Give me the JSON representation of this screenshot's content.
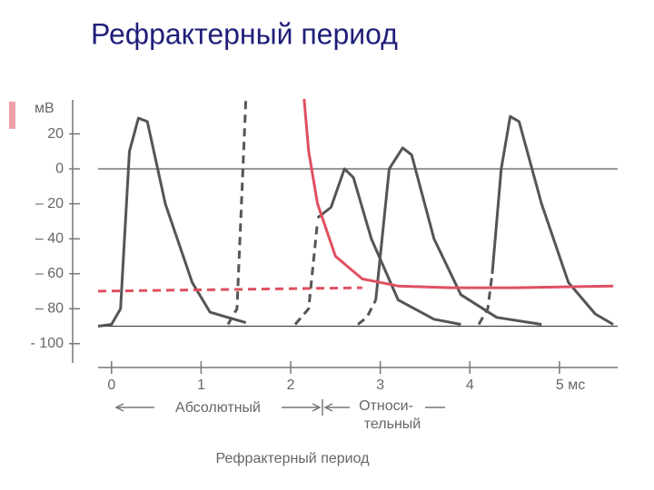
{
  "chart_data": {
    "type": "line",
    "title": "Рефрактерный период",
    "y_unit": "мВ",
    "xlim": [
      -0.15,
      5.65
    ],
    "ylim": [
      -110,
      40
    ],
    "xticks": [
      0,
      1,
      2,
      3,
      4,
      {
        "value": 5,
        "label": "5 мс"
      }
    ],
    "yticks": [
      20,
      0,
      {
        "value": -20,
        "label": "– 20"
      },
      {
        "value": -40,
        "label": "– 40"
      },
      {
        "value": -60,
        "label": "– 60"
      },
      {
        "value": -80,
        "label": "– 80"
      },
      {
        "value": -100,
        "label": "- 100"
      }
    ],
    "reference_lines": [
      0,
      -90
    ],
    "annotations": {
      "absolute": "Абсолютный",
      "relative_1": "Относи-",
      "relative_2": "тельный",
      "caption": "Рефрактерный период"
    },
    "series": [
      {
        "color": "#555555",
        "dashed": false,
        "x": [
          -0.15,
          0,
          0.1,
          0.2,
          0.3,
          0.4,
          0.6,
          0.9,
          1.1,
          1.5
        ],
        "values": [
          -90,
          -89,
          -80,
          10,
          29,
          27,
          -20,
          -65,
          -82,
          -88
        ]
      },
      {
        "color": "#555555",
        "dashed": true,
        "x": [
          1.3,
          1.4,
          1.45,
          1.5
        ],
        "values": [
          -89,
          -80,
          -20,
          40
        ]
      },
      {
        "color": "#555555",
        "dashed": true,
        "x": [
          2.05,
          2.2,
          2.3
        ],
        "values": [
          -89,
          -80,
          -30
        ]
      },
      {
        "color": "#555555",
        "dashed": false,
        "x": [
          2.3,
          2.45,
          2.6,
          2.7,
          2.9,
          3.2,
          3.6,
          3.9
        ],
        "values": [
          -28,
          -22,
          0,
          -5,
          -40,
          -75,
          -86,
          -89
        ]
      },
      {
        "color": "#555555",
        "dashed": true,
        "x": [
          2.75,
          2.85,
          2.95
        ],
        "values": [
          -89,
          -85,
          -75
        ]
      },
      {
        "color": "#555555",
        "dashed": false,
        "x": [
          2.95,
          3.1,
          3.25,
          3.35,
          3.6,
          3.9,
          4.3,
          4.8
        ],
        "values": [
          -75,
          0,
          12,
          8,
          -40,
          -72,
          -85,
          -89
        ]
      },
      {
        "color": "#555555",
        "dashed": true,
        "x": [
          4.1,
          4.2,
          4.25
        ],
        "values": [
          -89,
          -80,
          -60
        ]
      },
      {
        "color": "#555555",
        "dashed": false,
        "x": [
          4.25,
          4.35,
          4.45,
          4.55,
          4.8,
          5.1,
          5.4,
          5.6
        ],
        "values": [
          -60,
          0,
          30,
          27,
          -20,
          -65,
          -83,
          -89
        ]
      },
      {
        "color": "#e05060",
        "dashed": false,
        "x": [
          2.15,
          2.2,
          2.3,
          2.5,
          2.8,
          3.2,
          3.8,
          4.5,
          5.6
        ],
        "values": [
          40,
          10,
          -20,
          -50,
          -63,
          -67,
          -68,
          -68,
          -67
        ]
      },
      {
        "color": "#e05060",
        "dashed": true,
        "x": [
          -0.15,
          2.8
        ],
        "values": [
          -70,
          -68
        ]
      }
    ]
  }
}
